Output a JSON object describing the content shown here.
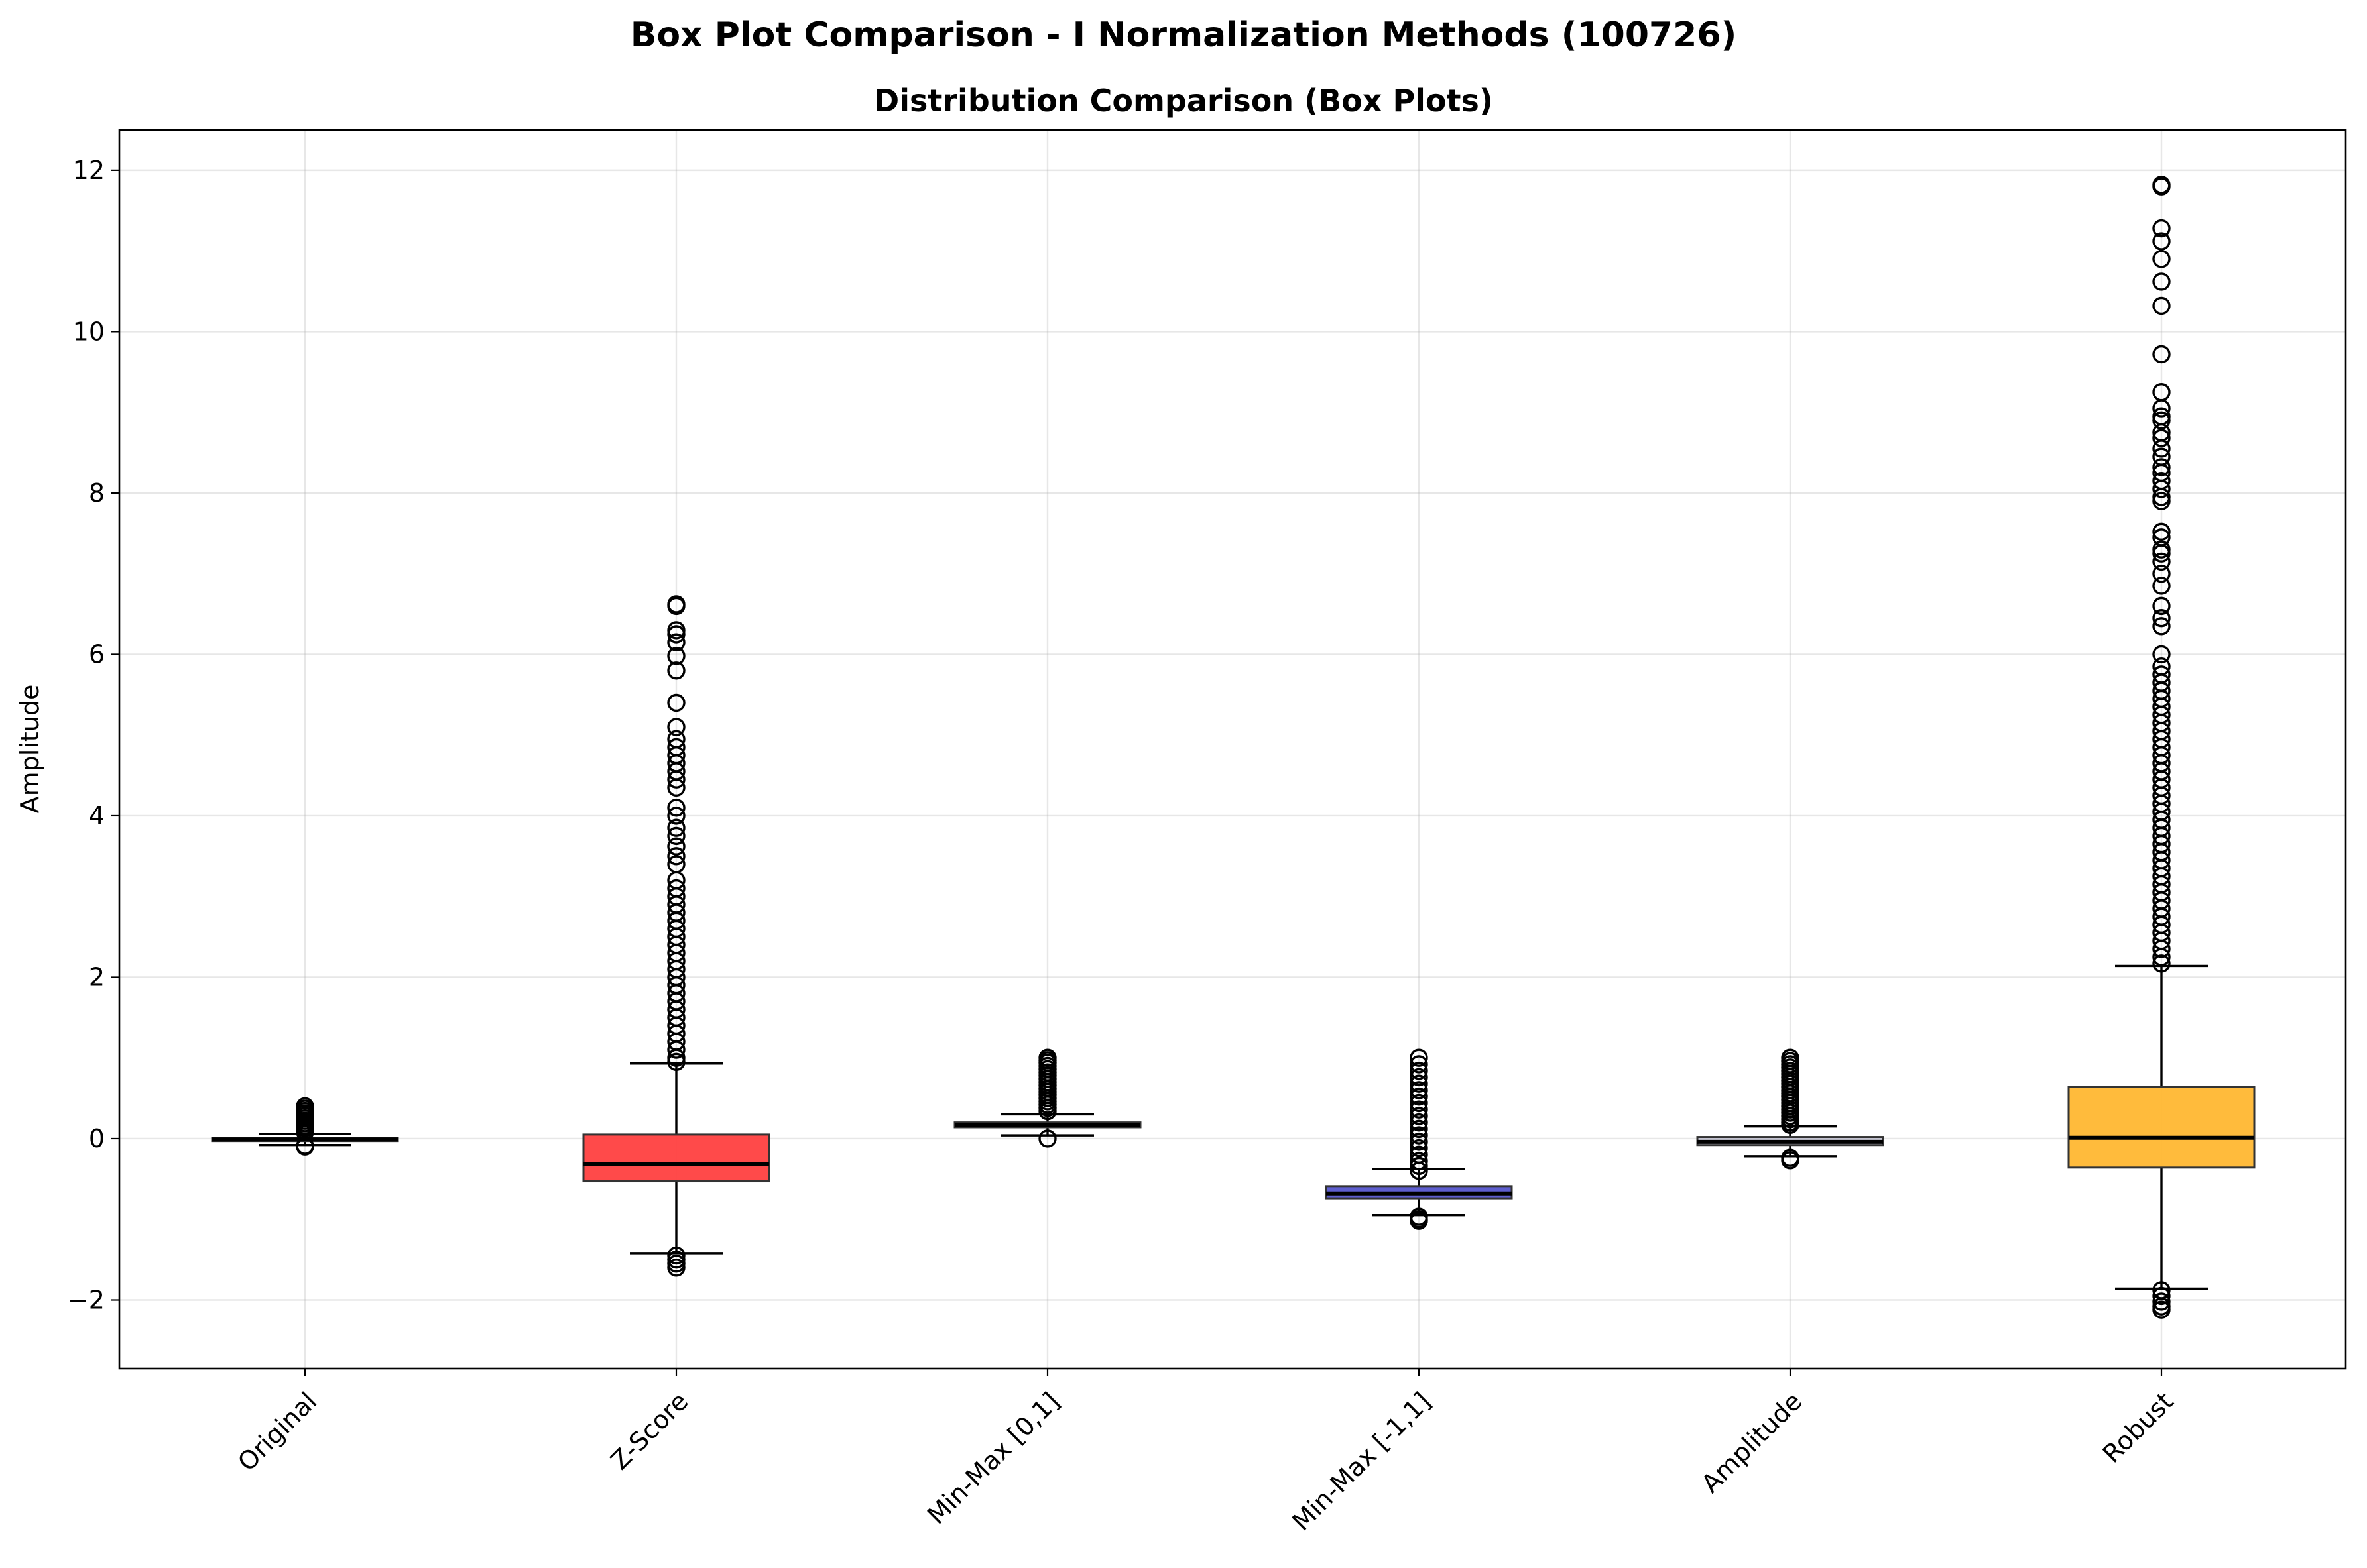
{
  "chart_data": {
    "type": "boxplot",
    "suptitle": "Box Plot Comparison - I Normalization Methods (100726)",
    "title": "Distribution Comparison (Box Plots)",
    "xlabel": "",
    "ylabel": "Amplitude",
    "ylim": [
      -2.85,
      12.5
    ],
    "yticks": [
      -2,
      0,
      2,
      4,
      6,
      8,
      10,
      12
    ],
    "ytick_labels": [
      "−2",
      "0",
      "2",
      "4",
      "6",
      "8",
      "10",
      "12"
    ],
    "grid": true,
    "categories": [
      "Original",
      "Z-Score",
      "Min-Max [0,1]",
      "Min-Max [-1,1]",
      "Amplitude",
      "Robust"
    ],
    "series": [
      {
        "name": "Original",
        "color": "#d9d9d9",
        "q1": -0.03,
        "median": -0.01,
        "q3": 0.01,
        "whisker_low": -0.08,
        "whisker_high": 0.06,
        "fliers": [
          0.4,
          0.37,
          0.34,
          0.31,
          0.28,
          0.25,
          0.22,
          0.19,
          0.16,
          0.13,
          0.1,
          0.08,
          -0.09,
          -0.1
        ]
      },
      {
        "name": "Z-Score",
        "color": "#ff4040",
        "q1": -0.53,
        "median": -0.32,
        "q3": 0.05,
        "whisker_low": -1.42,
        "whisker_high": 0.93,
        "fliers": [
          6.62,
          6.6,
          6.3,
          6.25,
          6.15,
          5.98,
          5.8,
          5.4,
          5.1,
          4.95,
          4.85,
          4.75,
          4.65,
          4.55,
          4.45,
          4.35,
          4.1,
          4.0,
          3.85,
          3.75,
          3.62,
          3.5,
          3.4,
          3.2,
          3.1,
          3.0,
          2.9,
          2.8,
          2.7,
          2.6,
          2.5,
          2.4,
          2.3,
          2.2,
          2.1,
          2.0,
          1.9,
          1.8,
          1.7,
          1.6,
          1.5,
          1.4,
          1.3,
          1.2,
          1.1,
          1.0,
          0.95,
          -1.45,
          -1.5,
          -1.55,
          -1.6
        ]
      },
      {
        "name": "Min-Max [0,1]",
        "color": "#4c72b0",
        "q1": 0.14,
        "median": 0.17,
        "q3": 0.2,
        "whisker_low": 0.04,
        "whisker_high": 0.3,
        "fliers": [
          1.0,
          0.97,
          0.94,
          0.9,
          0.86,
          0.82,
          0.78,
          0.74,
          0.7,
          0.66,
          0.62,
          0.58,
          0.54,
          0.5,
          0.46,
          0.42,
          0.38,
          0.34,
          0.0
        ]
      },
      {
        "name": "Min-Max [-1,1]",
        "color": "#5555cc",
        "q1": -0.74,
        "median": -0.68,
        "q3": -0.59,
        "whisker_low": -0.95,
        "whisker_high": -0.38,
        "fliers": [
          1.0,
          0.92,
          0.84,
          0.76,
          0.68,
          0.6,
          0.52,
          0.44,
          0.36,
          0.28,
          0.2,
          0.12,
          0.04,
          -0.04,
          -0.12,
          -0.2,
          -0.28,
          -0.34,
          -0.4,
          -0.97,
          -1.0,
          -1.02
        ]
      },
      {
        "name": "Amplitude",
        "color": "#c8c8d8",
        "q1": -0.08,
        "median": -0.04,
        "q3": 0.02,
        "whisker_low": -0.22,
        "whisker_high": 0.15,
        "fliers": [
          1.0,
          0.96,
          0.92,
          0.88,
          0.84,
          0.8,
          0.76,
          0.72,
          0.68,
          0.64,
          0.6,
          0.56,
          0.52,
          0.48,
          0.44,
          0.4,
          0.36,
          0.32,
          0.28,
          0.24,
          0.2,
          0.17,
          -0.24,
          -0.27
        ]
      },
      {
        "name": "Robust",
        "color": "#ffb732",
        "q1": -0.36,
        "median": 0.01,
        "q3": 0.64,
        "whisker_low": -1.86,
        "whisker_high": 2.14,
        "fliers": [
          11.82,
          11.8,
          11.28,
          11.12,
          10.9,
          10.62,
          10.32,
          9.72,
          9.25,
          9.05,
          8.95,
          8.9,
          8.75,
          8.68,
          8.55,
          8.45,
          8.32,
          8.25,
          8.15,
          8.05,
          7.95,
          7.9,
          7.52,
          7.45,
          7.3,
          7.25,
          7.15,
          7.0,
          6.85,
          6.6,
          6.45,
          6.35,
          6.0,
          5.85,
          5.75,
          5.65,
          5.55,
          5.45,
          5.35,
          5.25,
          5.15,
          5.05,
          4.95,
          4.85,
          4.75,
          4.65,
          4.55,
          4.45,
          4.35,
          4.25,
          4.15,
          4.05,
          3.95,
          3.85,
          3.75,
          3.65,
          3.55,
          3.45,
          3.35,
          3.25,
          3.15,
          3.05,
          2.95,
          2.85,
          2.75,
          2.65,
          2.55,
          2.45,
          2.35,
          2.25,
          2.17,
          -1.88,
          -1.95,
          -2.02,
          -2.08,
          -2.12
        ]
      }
    ]
  }
}
